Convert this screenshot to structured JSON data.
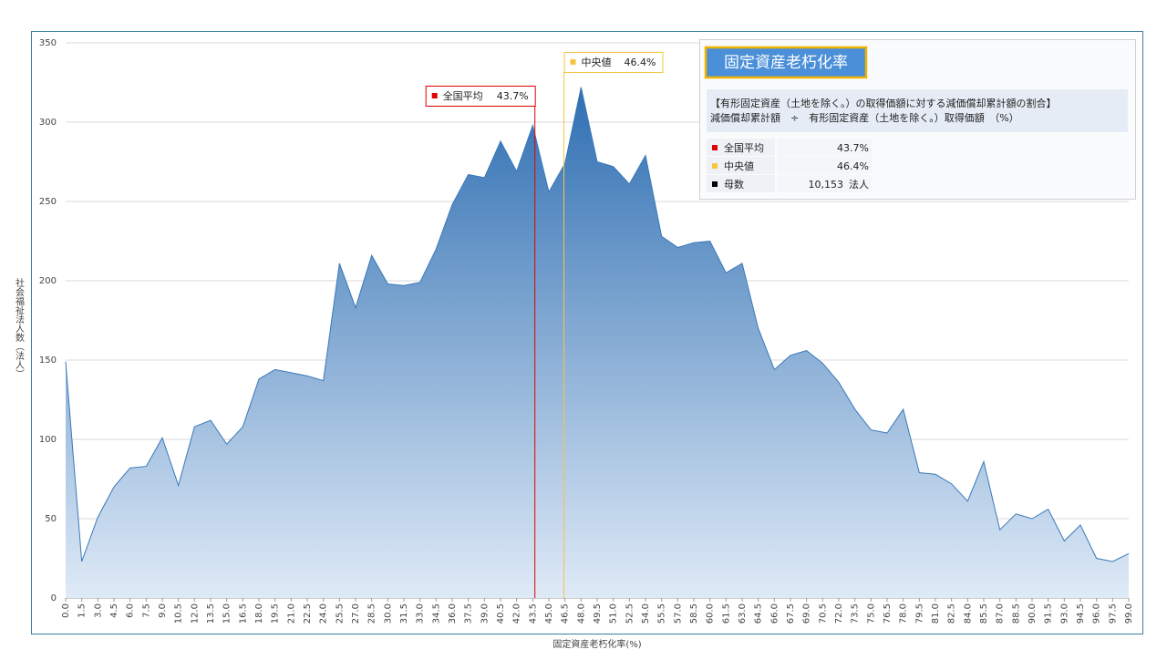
{
  "chart_data": {
    "type": "area",
    "x_label": "固定資産老朽化率(%)",
    "y_label": "社会福祉法人数（法人）",
    "color": "#3a78b8",
    "grid": true,
    "x": [
      0,
      1.5,
      3,
      4.5,
      6,
      7.5,
      9,
      10.5,
      12,
      13.5,
      15,
      16.5,
      18,
      19.5,
      21,
      22.5,
      24,
      25.5,
      27,
      28.5,
      30,
      31.5,
      33,
      34.5,
      36,
      37.5,
      39,
      40.5,
      42,
      43.5,
      45,
      46.5,
      48,
      49.5,
      51,
      52.5,
      54,
      55.5,
      57,
      58.5,
      60,
      61.5,
      63,
      64.5,
      66,
      67.5,
      69,
      70.5,
      72,
      73.5,
      75,
      76.5,
      78,
      79.5,
      81,
      82.5,
      84,
      85.5,
      87,
      88.5,
      90,
      91.5,
      93,
      94.5,
      96,
      97.5,
      99
    ],
    "values": [
      149,
      23,
      51,
      70,
      82,
      83,
      101,
      71,
      108,
      112,
      97,
      108,
      138,
      144,
      142,
      140,
      137,
      211,
      183,
      216,
      198,
      197,
      199,
      220,
      248,
      267,
      265,
      288,
      269,
      298,
      256,
      274,
      322,
      275,
      272,
      261,
      279,
      228,
      221,
      224,
      225,
      205,
      211,
      170,
      144,
      153,
      156,
      148,
      136,
      119,
      106,
      104,
      119,
      79,
      78,
      72,
      61,
      86,
      43,
      53,
      50,
      56,
      36,
      46,
      25,
      23,
      28
    ],
    "xlim": [
      0,
      99
    ],
    "xticks": [
      {
        "value": 0,
        "label": "0.0"
      },
      1.5,
      {
        "value": 3,
        "label": "3.0"
      },
      4.5,
      {
        "value": 6,
        "label": "6.0"
      },
      7.5,
      {
        "value": 9,
        "label": "9.0"
      },
      10.5,
      {
        "value": 12,
        "label": "12.0"
      },
      13.5,
      {
        "value": 15,
        "label": "15.0"
      },
      16.5,
      {
        "value": 18,
        "label": "18.0"
      },
      19.5,
      {
        "value": 21,
        "label": "21.0"
      },
      22.5,
      {
        "value": 24,
        "label": "24.0"
      },
      25.5,
      {
        "value": 27,
        "label": "27.0"
      },
      28.5,
      {
        "value": 30,
        "label": "30.0"
      },
      31.5,
      {
        "value": 33,
        "label": "33.0"
      },
      34.5,
      {
        "value": 36,
        "label": "36.0"
      },
      37.5,
      {
        "value": 39,
        "label": "39.0"
      },
      40.5,
      {
        "value": 42,
        "label": "42.0"
      },
      43.5,
      {
        "value": 45,
        "label": "45.0"
      },
      46.5,
      {
        "value": 48,
        "label": "48.0"
      },
      49.5,
      {
        "value": 51,
        "label": "51.0"
      },
      52.5,
      {
        "value": 54,
        "label": "54.0"
      },
      55.5,
      {
        "value": 57,
        "label": "57.0"
      },
      58.5,
      {
        "value": 60,
        "label": "60.0"
      },
      61.5,
      {
        "value": 63,
        "label": "63.0"
      },
      64.5,
      {
        "value": 66,
        "label": "66.0"
      },
      67.5,
      {
        "value": 69,
        "label": "69.0"
      },
      70.5,
      {
        "value": 72,
        "label": "72.0"
      },
      73.5,
      {
        "value": 75,
        "label": "75.0"
      },
      76.5,
      {
        "value": 78,
        "label": "78.0"
      },
      79.5,
      {
        "value": 81,
        "label": "81.0"
      },
      82.5,
      {
        "value": 84,
        "label": "84.0"
      },
      85.5,
      {
        "value": 87,
        "label": "87.0"
      },
      88.5,
      {
        "value": 90,
        "label": "90.0"
      },
      91.5,
      {
        "value": 93,
        "label": "93.0"
      },
      94.5,
      {
        "value": 96,
        "label": "96.0"
      },
      97.5,
      {
        "value": 99,
        "label": "99.0"
      }
    ],
    "ylim": [
      0,
      350
    ],
    "yticks": [
      0,
      50,
      100,
      150,
      200,
      250,
      300,
      350
    ],
    "reference_lines": [
      {
        "name": "全国平均",
        "value": 43.7,
        "label": "43.7%",
        "color": "#e00000"
      },
      {
        "name": "中央値",
        "value": 46.4,
        "label": "46.4%",
        "color": "#f5c542"
      }
    ],
    "info_panel": {
      "title": "固定資産老朽化率",
      "description": [
        "【有形固定資産（土地を除く。）の取得価額に対する減価償却累計額の割合】",
        "減価償却累計額　÷　有形固定資産（土地を除く。）取得価額　（%）"
      ],
      "count": {
        "name": "母数",
        "value": 10153,
        "label": "10,153",
        "unit": "法人",
        "color": "#000000"
      }
    }
  }
}
